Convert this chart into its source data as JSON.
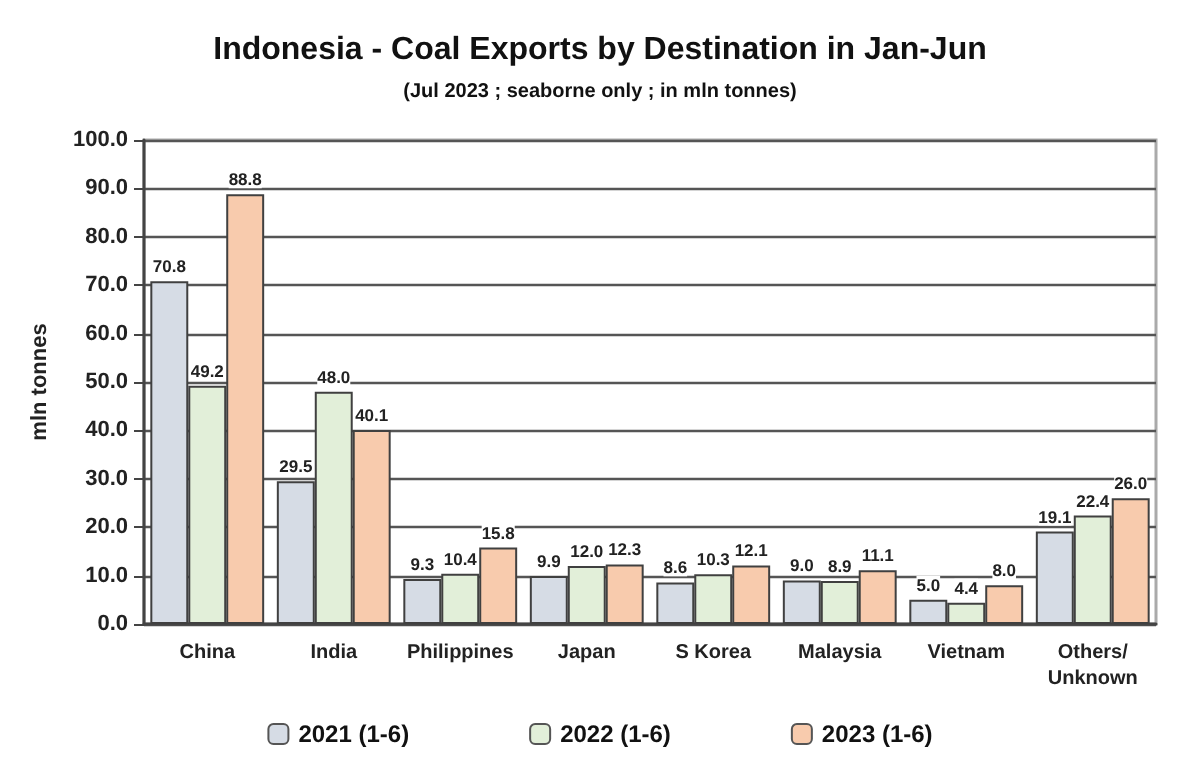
{
  "chart_data": {
    "type": "bar",
    "title": "Indonesia - Coal Exports by Destination in Jan-Jun",
    "subtitle": "(Jul 2023 ; seaborne only ; in mln tonnes)",
    "ylabel": "mln tonnes",
    "categories": [
      "China",
      "India",
      "Philippines",
      "Japan",
      "S Korea",
      "Malaysia",
      "Vietnam",
      "Others/\nUnknown"
    ],
    "series": [
      {
        "name": "2021 (1-6)",
        "color": "#d6dce5",
        "values": [
          70.8,
          29.5,
          9.3,
          9.9,
          8.6,
          9.0,
          5.0,
          19.1
        ],
        "value_labels": [
          "70.8",
          "29.5",
          "9.3",
          "9.9",
          "8.6",
          "9.0",
          "5.0",
          "19.1"
        ]
      },
      {
        "name": "2022 (1-6)",
        "color": "#e2efd9",
        "values": [
          49.2,
          48.0,
          10.4,
          12.0,
          10.3,
          8.9,
          4.4,
          22.4
        ],
        "value_labels": [
          "49.2",
          "48.0",
          "10.4",
          "12.0",
          "10.3",
          "8.9",
          "4.4",
          "22.4"
        ]
      },
      {
        "name": "2023 (1-6)",
        "color": "#f8cbad",
        "values": [
          88.8,
          40.1,
          15.8,
          12.3,
          12.1,
          11.1,
          8.0,
          26.0
        ],
        "value_labels": [
          "88.8",
          "40.1",
          "15.8",
          "12.3",
          "12.1",
          "11.1",
          "8.0",
          "26.0"
        ]
      }
    ],
    "ylim": [
      0,
      100
    ],
    "yticks": [
      {
        "value": 0,
        "label": "0.0"
      },
      {
        "value": 10,
        "label": "10.0"
      },
      {
        "value": 20,
        "label": "20.0"
      },
      {
        "value": 30,
        "label": "30.0"
      },
      {
        "value": 40,
        "label": "40.0"
      },
      {
        "value": 50,
        "label": "50.0"
      },
      {
        "value": 60,
        "label": "60.0"
      },
      {
        "value": 70,
        "label": "70.0"
      },
      {
        "value": 80,
        "label": "80.0"
      },
      {
        "value": 90,
        "label": "90.0"
      },
      {
        "value": 100,
        "label": "100.0"
      }
    ],
    "grid": "y",
    "legend": "bottom"
  }
}
